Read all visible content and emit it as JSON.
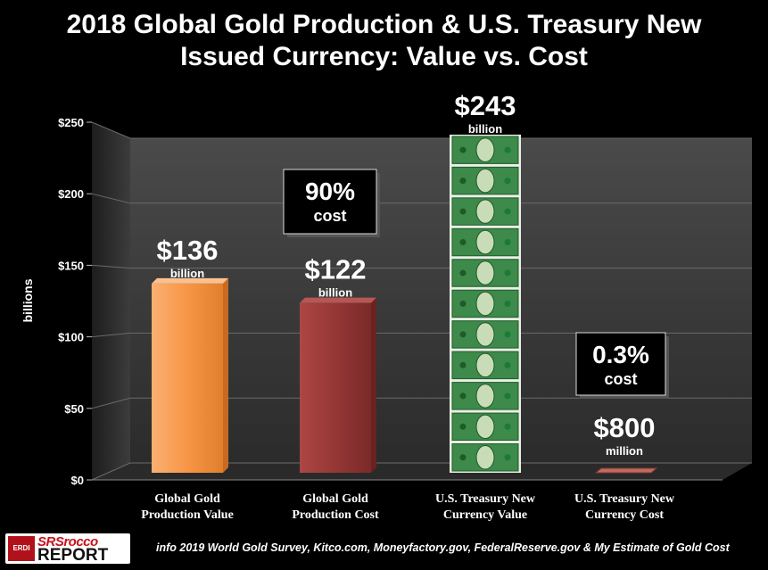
{
  "title_line1": "2018 Global Gold Production & U.S. Treasury New",
  "title_line2": "Issued Currency:  Value vs. Cost",
  "footer": "info 2019 World Gold Survey, Kitco.com, Moneyfactory.gov, FederalReserve.gov & My Estimate of Gold Cost",
  "logo": {
    "mark": "ERDI",
    "line1": "SRSrocco",
    "line2": "REPORT"
  },
  "colors": {
    "background": "#000000",
    "wall": "#3a3a3a",
    "gold_bar": "#f79646",
    "cost_bar": "#953735",
    "cash": "#2e8b3e",
    "cash_cost": "#c06a5e"
  },
  "chart_data": {
    "type": "bar",
    "ylabel": "billions",
    "ylim": [
      0,
      250
    ],
    "yticks": [
      0,
      50,
      100,
      150,
      200,
      250
    ],
    "ytick_labels": [
      "$0",
      "$50",
      "$100",
      "$150",
      "$200",
      "$250"
    ],
    "categories": [
      [
        "Global Gold",
        "Production Value"
      ],
      [
        "Global Gold",
        "Production Cost"
      ],
      [
        "U.S. Treasury New",
        "Currency Value"
      ],
      [
        "U.S. Treasury New",
        "Currency Cost"
      ]
    ],
    "values": [
      136,
      122,
      243,
      0.8
    ],
    "value_labels": [
      {
        "big": "$136",
        "small": "billion"
      },
      {
        "big": "$122",
        "small": "billion"
      },
      {
        "big": "$243",
        "small": "billion"
      },
      {
        "big": "$800",
        "small": "million"
      }
    ],
    "bar_styles": [
      "gold",
      "cost",
      "cash",
      "cash-cost"
    ],
    "annotations": [
      {
        "big": "90%",
        "small": "cost"
      },
      {
        "big": "0.3%",
        "small": "cost"
      }
    ]
  }
}
